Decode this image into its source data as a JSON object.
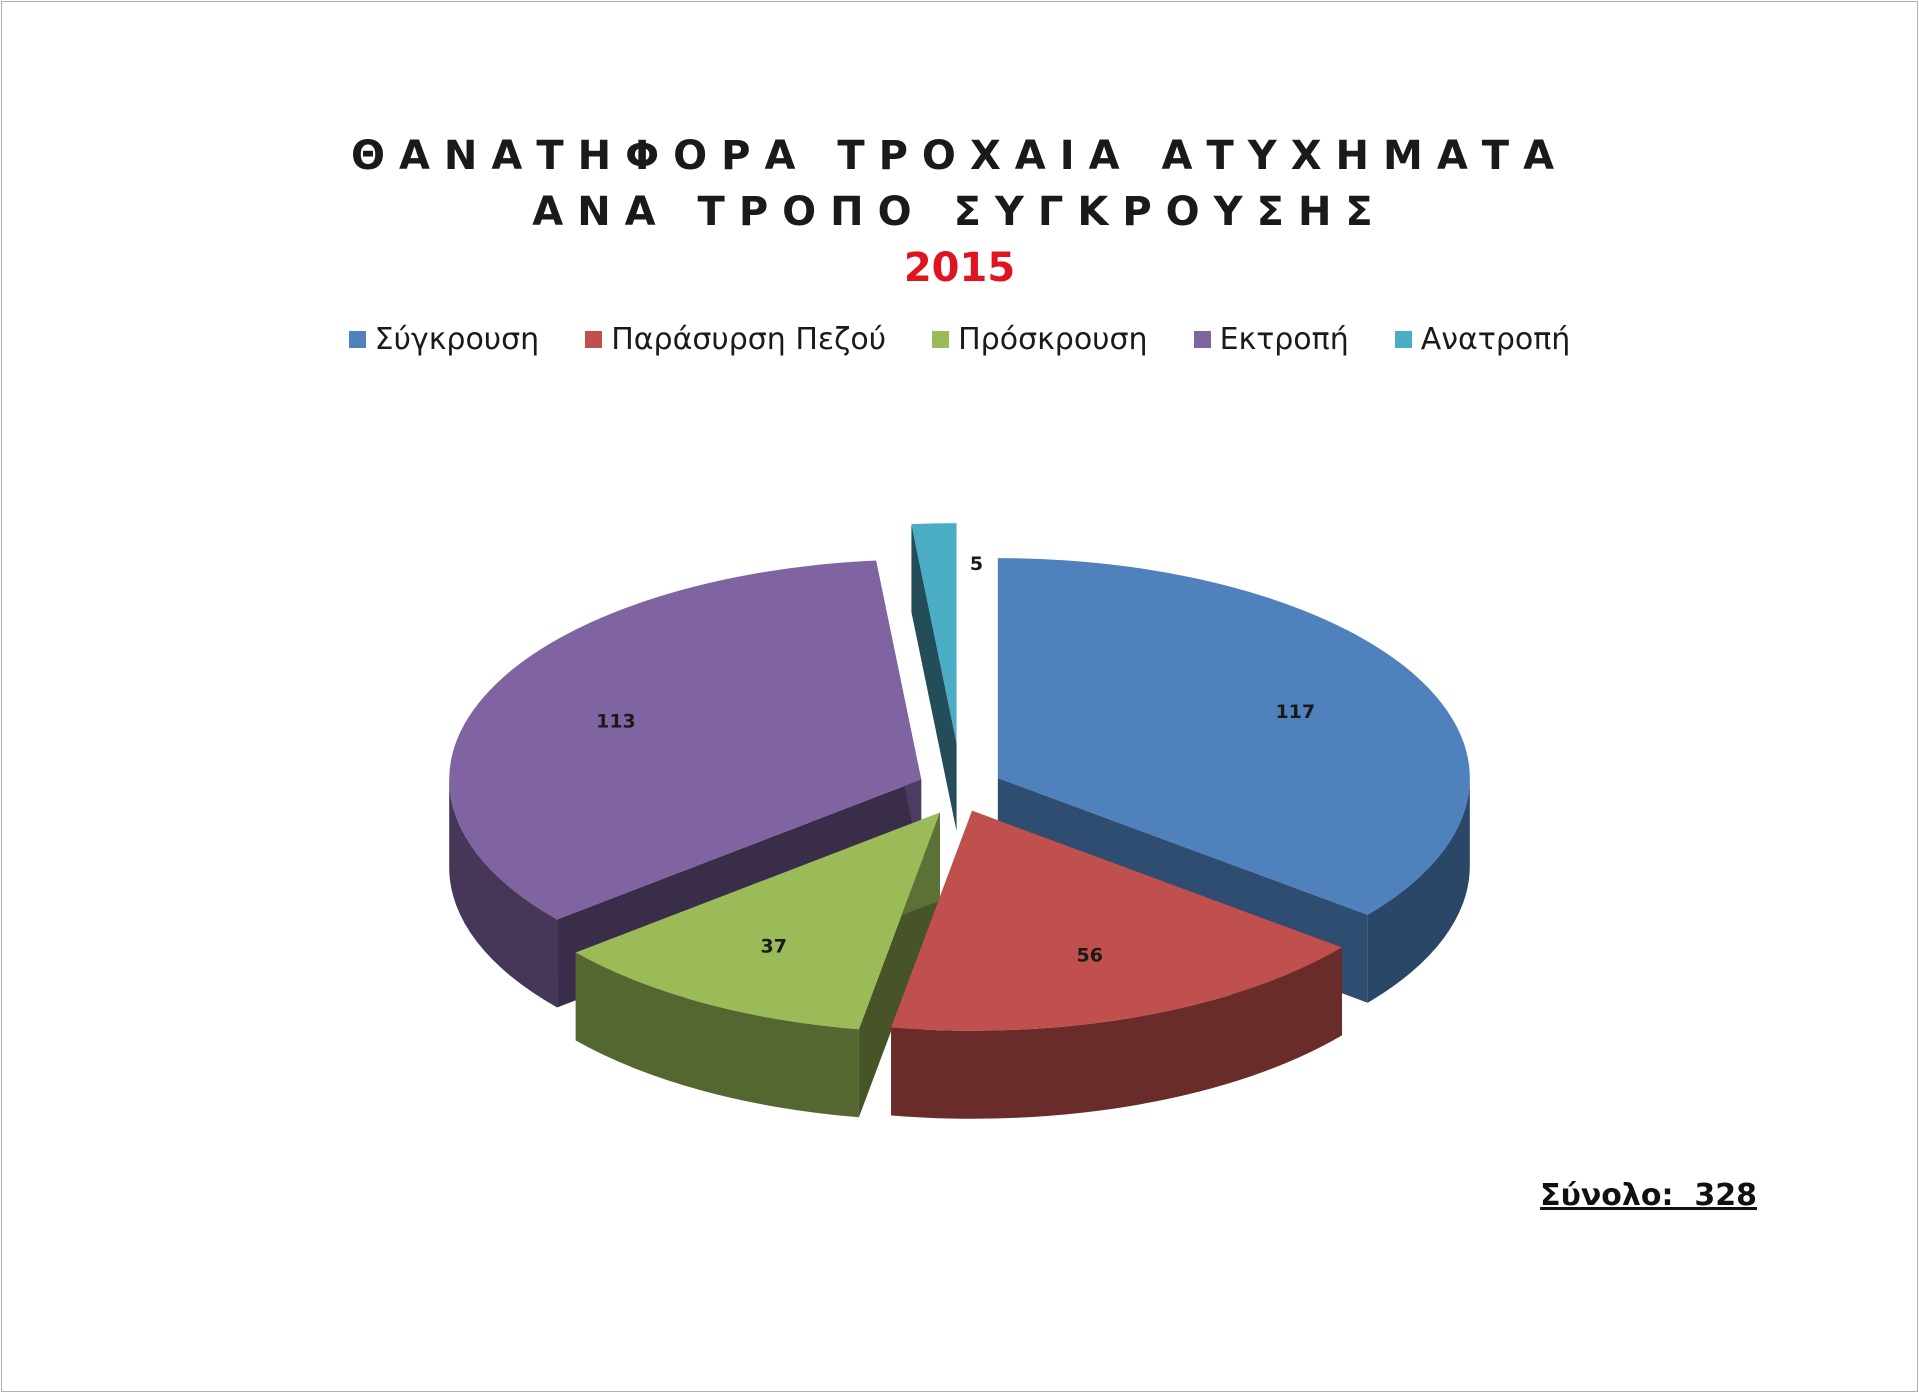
{
  "chart_data": {
    "type": "pie",
    "style": "3d-exploded",
    "title_lines": [
      "ΘΑΝΑΤΗΦΟΡΑ ΤΡΟΧΑΙΑ ΑΤΥΧΗΜΑΤΑ",
      "ΑΝΑ ΤΡΟΠΟ ΣΥΓΚΡΟΥΣΗΣ"
    ],
    "year": "2015",
    "legend_position": "top",
    "slices": [
      {
        "label": "Σύγκρουση",
        "value": 117,
        "color": "#4f81bd"
      },
      {
        "label": "Παράσυρση Πεζού",
        "value": 56,
        "color": "#c0504d"
      },
      {
        "label": "Πρόσκρουση",
        "value": 37,
        "color": "#9bbb59"
      },
      {
        "label": "Εκτροπή",
        "value": 113,
        "color": "#8064a2"
      },
      {
        "label": "Ανατροπή",
        "value": 5,
        "color": "#4bacc6"
      }
    ],
    "total_label": "Σύνολο:  328"
  }
}
